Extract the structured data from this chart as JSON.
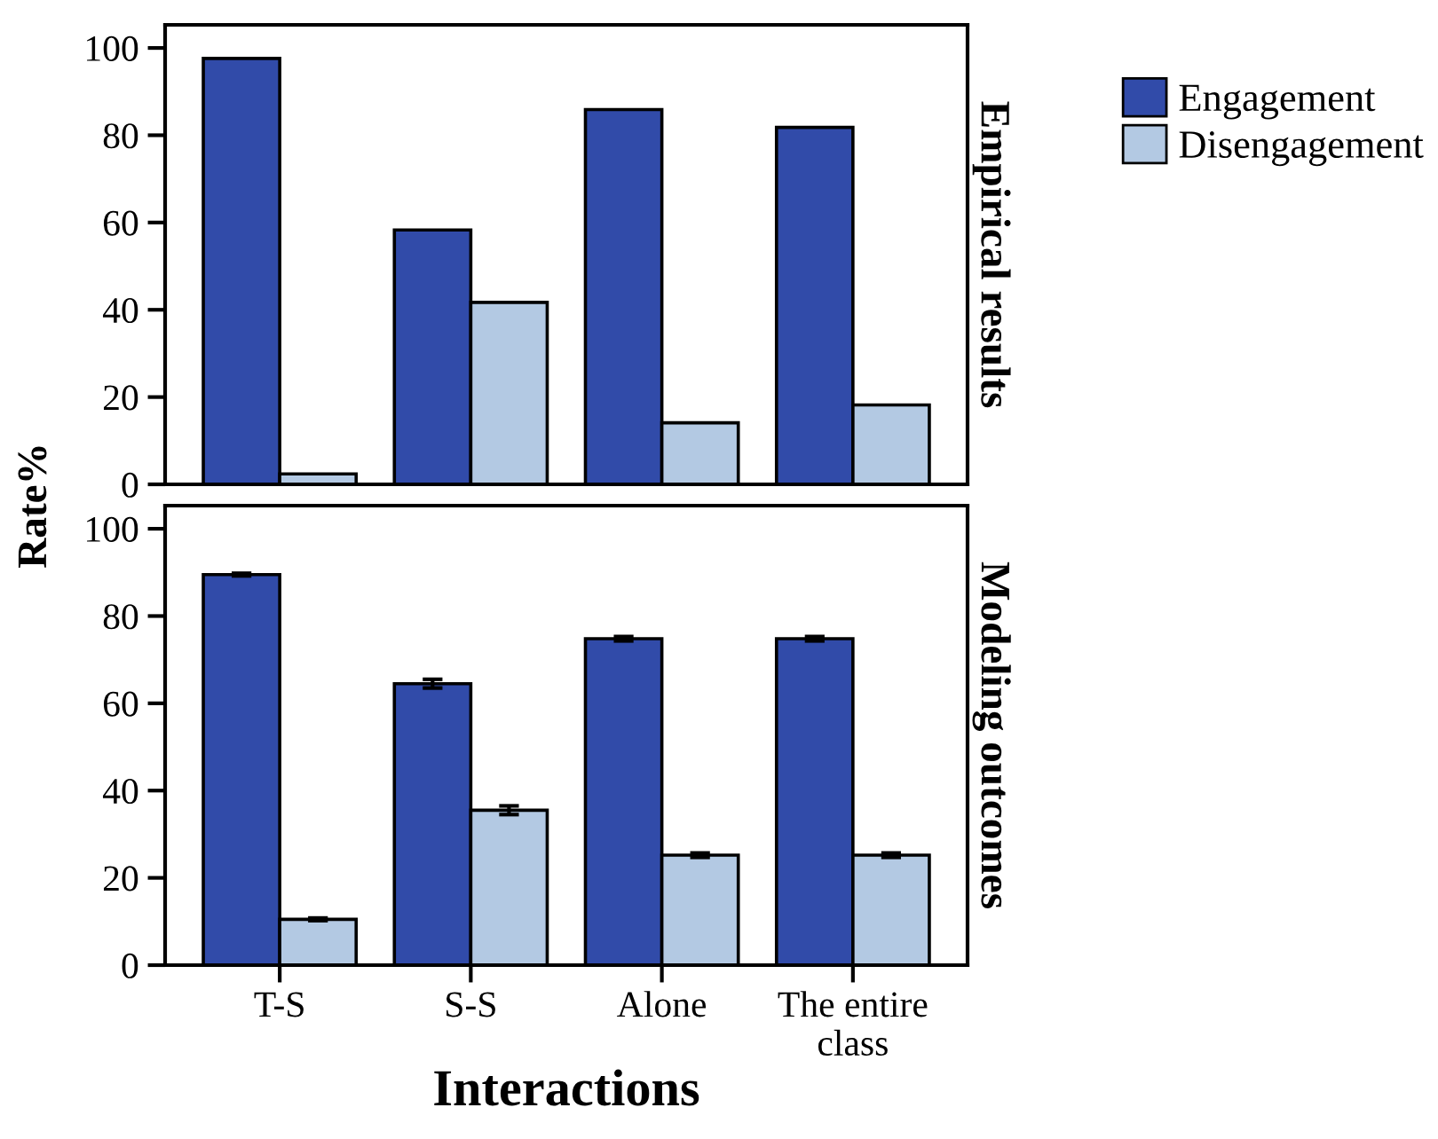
{
  "chart_data": [
    {
      "type": "bar",
      "title": "Empirical results",
      "ylabel": "Rate%",
      "categories": [
        null,
        null,
        null,
        null
      ],
      "series": [
        {
          "name": "Engagement",
          "color": "#314ba9",
          "values": [
            97.6,
            58.3,
            85.9,
            81.8
          ]
        },
        {
          "name": "Disengagement",
          "color": "#b3c9e3",
          "values": [
            2.4,
            41.7,
            14.1,
            18.2
          ]
        }
      ],
      "ylim": [
        0,
        105.3
      ],
      "yticks": [
        0,
        20,
        40,
        60,
        80,
        100
      ],
      "tick_labels": "y",
      "legend": "right",
      "grid": false
    },
    {
      "type": "bar",
      "title": "Modeling outcomes",
      "xlabel": "Interactions",
      "categories": [
        "T-S",
        "S-S",
        "Alone",
        "The entire\nclass"
      ],
      "series": [
        {
          "color": "#314ba9",
          "values": [
            89.5,
            64.5,
            74.8,
            74.8
          ],
          "errors": [
            0.3,
            1.0,
            0.5,
            0.5
          ]
        },
        {
          "color": "#b3c9e3",
          "values": [
            10.5,
            35.5,
            25.2,
            25.2
          ],
          "errors": [
            0.3,
            1.0,
            0.5,
            0.5
          ]
        }
      ],
      "ylim": [
        0,
        105.3
      ],
      "yticks": [
        0,
        20,
        40,
        60,
        80,
        100
      ],
      "grid": false
    }
  ]
}
